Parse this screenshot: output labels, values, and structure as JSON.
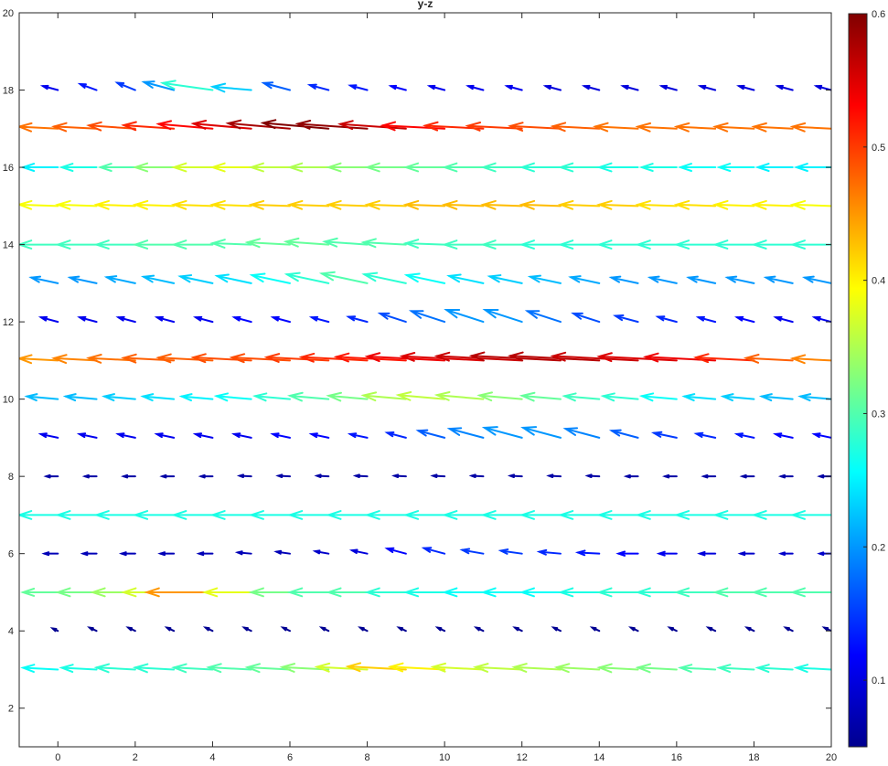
{
  "chart_data": {
    "type": "quiver",
    "title": "y-z",
    "xlabel": "",
    "ylabel": "",
    "xlim": [
      -1,
      20
    ],
    "ylim": [
      1,
      20
    ],
    "x_ticks": [
      "0",
      "2",
      "4",
      "6",
      "8",
      "10",
      "12",
      "14",
      "16",
      "18",
      "20"
    ],
    "y_ticks": [
      "2",
      "4",
      "6",
      "8",
      "10",
      "12",
      "14",
      "16",
      "18",
      "20"
    ],
    "grid": false,
    "colormap": "jet",
    "colorbar": {
      "range": [
        0.05,
        0.6
      ],
      "tick_labels": [
        "0.1",
        "0.2",
        "0.3",
        "0.4",
        "0.5",
        "0.6"
      ]
    },
    "x_positions": [
      0,
      1,
      2,
      3,
      4,
      5,
      6,
      7,
      8,
      9,
      10,
      11,
      12,
      13,
      14,
      15,
      16,
      17,
      18,
      19,
      20
    ],
    "rows": [
      {
        "y": 3,
        "lengths": [
          0.9,
          0.9,
          1.0,
          1.0,
          1.0,
          1.1,
          1.1,
          1.2,
          1.3,
          1.5,
          1.4,
          1.3,
          1.2,
          1.2,
          1.1,
          1.0,
          1.0,
          0.9,
          0.9,
          0.9,
          0.9
        ],
        "angles": [
          3,
          3,
          3,
          3,
          3,
          3,
          3,
          3,
          3,
          3,
          3,
          3,
          3,
          3,
          3,
          3,
          3,
          3,
          3,
          3,
          3
        ],
        "mags": [
          0.26,
          0.27,
          0.28,
          0.28,
          0.29,
          0.3,
          0.31,
          0.33,
          0.37,
          0.42,
          0.4,
          0.37,
          0.36,
          0.35,
          0.34,
          0.33,
          0.32,
          0.3,
          0.29,
          0.28,
          0.27
        ]
      },
      {
        "y": 4,
        "lengths": [
          0.15,
          0.2,
          0.2,
          0.2,
          0.2,
          0.2,
          0.2,
          0.2,
          0.2,
          0.2,
          0.2,
          0.2,
          0.2,
          0.2,
          0.2,
          0.2,
          0.2,
          0.2,
          0.2,
          0.2,
          0.2
        ],
        "angles": [
          25,
          25,
          25,
          25,
          25,
          25,
          25,
          25,
          25,
          25,
          25,
          25,
          25,
          25,
          25,
          25,
          25,
          25,
          25,
          25,
          25
        ],
        "mags": [
          0.06,
          0.06,
          0.06,
          0.06,
          0.06,
          0.06,
          0.06,
          0.06,
          0.06,
          0.06,
          0.06,
          0.06,
          0.06,
          0.06,
          0.06,
          0.06,
          0.06,
          0.06,
          0.06,
          0.06,
          0.06
        ]
      },
      {
        "y": 5,
        "lengths": [
          0.9,
          1.0,
          1.1,
          1.3,
          1.7,
          1.2,
          1.0,
          1.0,
          1.0,
          1.0,
          1.0,
          1.0,
          1.0,
          1.0,
          1.0,
          1.0,
          1.0,
          1.0,
          1.0,
          1.0,
          1.0
        ],
        "angles": [
          0,
          0,
          0,
          0,
          0,
          0,
          0,
          0,
          0,
          0,
          0,
          0,
          0,
          0,
          0,
          0,
          0,
          0,
          0,
          0,
          0
        ],
        "mags": [
          0.31,
          0.32,
          0.34,
          0.37,
          0.45,
          0.38,
          0.32,
          0.3,
          0.3,
          0.28,
          0.27,
          0.26,
          0.26,
          0.26,
          0.27,
          0.28,
          0.28,
          0.29,
          0.3,
          0.3,
          0.3
        ]
      },
      {
        "y": 6,
        "lengths": [
          0.35,
          0.35,
          0.35,
          0.35,
          0.35,
          0.35,
          0.35,
          0.35,
          0.4,
          0.5,
          0.55,
          0.55,
          0.55,
          0.55,
          0.55,
          0.5,
          0.45,
          0.4,
          0.35,
          0.3,
          0.3
        ],
        "angles": [
          0,
          0,
          0,
          0,
          0,
          5,
          8,
          10,
          12,
          15,
          15,
          10,
          8,
          5,
          3,
          0,
          0,
          0,
          0,
          0,
          0
        ],
        "mags": [
          0.08,
          0.08,
          0.08,
          0.08,
          0.08,
          0.08,
          0.08,
          0.09,
          0.1,
          0.12,
          0.14,
          0.15,
          0.15,
          0.14,
          0.13,
          0.12,
          0.11,
          0.1,
          0.09,
          0.09,
          0.09
        ]
      },
      {
        "y": 7,
        "lengths": [
          1.0,
          1.0,
          1.0,
          1.0,
          1.0,
          1.0,
          1.0,
          1.0,
          1.0,
          1.0,
          1.0,
          1.0,
          1.0,
          1.0,
          1.0,
          1.0,
          1.0,
          1.0,
          1.0,
          1.0,
          1.0
        ],
        "angles": [
          0,
          0,
          0,
          0,
          0,
          0,
          0,
          0,
          0,
          0,
          0,
          0,
          0,
          0,
          0,
          0,
          0,
          0,
          0,
          0,
          0
        ],
        "mags": [
          0.27,
          0.27,
          0.27,
          0.27,
          0.27,
          0.27,
          0.27,
          0.27,
          0.27,
          0.27,
          0.27,
          0.27,
          0.27,
          0.27,
          0.27,
          0.27,
          0.27,
          0.27,
          0.27,
          0.27,
          0.27
        ]
      },
      {
        "y": 8,
        "lengths": [
          0.3,
          0.3,
          0.3,
          0.3,
          0.3,
          0.3,
          0.3,
          0.3,
          0.3,
          0.3,
          0.3,
          0.3,
          0.3,
          0.3,
          0.3,
          0.3,
          0.3,
          0.3,
          0.3,
          0.3,
          0.3
        ],
        "angles": [
          0,
          0,
          0,
          0,
          0,
          3,
          3,
          3,
          3,
          3,
          3,
          3,
          3,
          3,
          3,
          0,
          0,
          0,
          0,
          0,
          0
        ],
        "mags": [
          0.07,
          0.07,
          0.07,
          0.07,
          0.07,
          0.07,
          0.07,
          0.07,
          0.07,
          0.07,
          0.07,
          0.07,
          0.07,
          0.07,
          0.07,
          0.07,
          0.07,
          0.07,
          0.07,
          0.07,
          0.07
        ]
      },
      {
        "y": 9,
        "lengths": [
          0.45,
          0.45,
          0.45,
          0.45,
          0.45,
          0.45,
          0.45,
          0.45,
          0.45,
          0.5,
          0.7,
          0.9,
          1.0,
          1.0,
          0.9,
          0.7,
          0.6,
          0.5,
          0.45,
          0.45,
          0.45
        ],
        "angles": [
          12,
          12,
          12,
          12,
          12,
          12,
          12,
          12,
          12,
          15,
          15,
          15,
          15,
          15,
          15,
          15,
          12,
          12,
          12,
          12,
          12
        ],
        "mags": [
          0.11,
          0.11,
          0.11,
          0.11,
          0.11,
          0.11,
          0.12,
          0.12,
          0.13,
          0.14,
          0.17,
          0.19,
          0.2,
          0.2,
          0.19,
          0.17,
          0.15,
          0.14,
          0.13,
          0.12,
          0.12
        ]
      },
      {
        "y": 10,
        "lengths": [
          0.8,
          0.8,
          0.8,
          0.8,
          0.8,
          0.9,
          0.9,
          1.0,
          1.0,
          1.1,
          1.2,
          1.2,
          1.1,
          1.0,
          0.9,
          0.9,
          0.9,
          0.8,
          0.8,
          0.8,
          0.8
        ],
        "angles": [
          5,
          5,
          5,
          5,
          5,
          5,
          5,
          5,
          5,
          5,
          5,
          5,
          5,
          5,
          5,
          5,
          5,
          5,
          5,
          5,
          5
        ],
        "mags": [
          0.22,
          0.22,
          0.23,
          0.24,
          0.25,
          0.26,
          0.28,
          0.3,
          0.32,
          0.35,
          0.36,
          0.35,
          0.33,
          0.31,
          0.29,
          0.28,
          0.26,
          0.24,
          0.23,
          0.22,
          0.22
        ]
      },
      {
        "y": 11,
        "lengths": [
          1.0,
          1.1,
          1.2,
          1.3,
          1.4,
          1.5,
          1.5,
          1.6,
          1.7,
          1.8,
          2.0,
          2.1,
          2.2,
          2.3,
          2.3,
          2.2,
          2.0,
          1.8,
          1.5,
          1.2,
          1.0
        ],
        "angles": [
          3,
          3,
          3,
          3,
          3,
          3,
          3,
          3,
          3,
          3,
          3,
          3,
          3,
          3,
          3,
          3,
          3,
          3,
          3,
          3,
          3
        ],
        "mags": [
          0.45,
          0.46,
          0.47,
          0.48,
          0.48,
          0.49,
          0.49,
          0.5,
          0.51,
          0.52,
          0.54,
          0.55,
          0.56,
          0.57,
          0.57,
          0.56,
          0.55,
          0.54,
          0.51,
          0.48,
          0.46
        ]
      },
      {
        "y": 12,
        "lengths": [
          0.45,
          0.45,
          0.45,
          0.45,
          0.45,
          0.45,
          0.45,
          0.45,
          0.5,
          0.7,
          0.9,
          1.0,
          1.0,
          0.9,
          0.7,
          0.6,
          0.5,
          0.45,
          0.45,
          0.45,
          0.45
        ],
        "angles": [
          15,
          15,
          15,
          15,
          15,
          15,
          15,
          15,
          15,
          18,
          18,
          18,
          18,
          18,
          18,
          15,
          15,
          15,
          15,
          15,
          15
        ],
        "mags": [
          0.11,
          0.11,
          0.11,
          0.11,
          0.11,
          0.12,
          0.12,
          0.13,
          0.14,
          0.16,
          0.18,
          0.2,
          0.2,
          0.18,
          0.16,
          0.15,
          0.14,
          0.13,
          0.12,
          0.11,
          0.11
        ]
      },
      {
        "y": 13,
        "lengths": [
          0.7,
          0.7,
          0.75,
          0.8,
          0.85,
          0.9,
          1.0,
          1.1,
          1.2,
          1.1,
          1.0,
          0.9,
          0.85,
          0.8,
          0.75,
          0.7,
          0.7,
          0.7,
          0.7,
          0.7,
          0.7
        ],
        "angles": [
          12,
          12,
          12,
          12,
          12,
          12,
          12,
          12,
          12,
          12,
          12,
          12,
          12,
          12,
          12,
          12,
          12,
          12,
          12,
          12,
          12
        ],
        "mags": [
          0.2,
          0.2,
          0.21,
          0.22,
          0.23,
          0.24,
          0.26,
          0.28,
          0.3,
          0.28,
          0.26,
          0.24,
          0.23,
          0.22,
          0.21,
          0.2,
          0.2,
          0.2,
          0.2,
          0.2,
          0.2
        ]
      },
      {
        "y": 14,
        "lengths": [
          1.0,
          1.0,
          1.0,
          1.0,
          1.0,
          1.0,
          1.1,
          1.1,
          1.1,
          1.1,
          1.0,
          1.0,
          1.0,
          1.0,
          1.0,
          1.0,
          1.0,
          1.0,
          1.0,
          1.0,
          1.0
        ],
        "angles": [
          0,
          0,
          0,
          0,
          0,
          2,
          3,
          4,
          4,
          3,
          2,
          0,
          0,
          0,
          0,
          0,
          0,
          0,
          0,
          0,
          0
        ],
        "mags": [
          0.29,
          0.29,
          0.29,
          0.3,
          0.3,
          0.3,
          0.31,
          0.31,
          0.3,
          0.3,
          0.29,
          0.29,
          0.29,
          0.28,
          0.28,
          0.28,
          0.28,
          0.28,
          0.28,
          0.28,
          0.28
        ]
      },
      {
        "y": 15,
        "lengths": [
          1.0,
          1.0,
          1.0,
          1.0,
          1.0,
          1.0,
          1.0,
          1.0,
          1.0,
          1.0,
          1.0,
          1.0,
          1.0,
          1.0,
          1.0,
          1.0,
          1.0,
          1.0,
          1.0,
          1.0,
          1.0
        ],
        "angles": [
          2,
          2,
          2,
          2,
          2,
          2,
          2,
          2,
          2,
          2,
          2,
          2,
          2,
          2,
          2,
          2,
          2,
          2,
          2,
          2,
          2
        ],
        "mags": [
          0.39,
          0.39,
          0.4,
          0.4,
          0.41,
          0.41,
          0.42,
          0.42,
          0.42,
          0.42,
          0.43,
          0.43,
          0.43,
          0.43,
          0.42,
          0.42,
          0.41,
          0.41,
          0.4,
          0.4,
          0.39
        ]
      },
      {
        "y": 16,
        "lengths": [
          0.9,
          0.9,
          0.9,
          1.0,
          1.0,
          1.0,
          1.0,
          1.0,
          1.0,
          1.0,
          1.0,
          1.0,
          1.0,
          1.0,
          1.0,
          1.0,
          0.9,
          0.9,
          0.9,
          0.9,
          0.9
        ],
        "angles": [
          0,
          0,
          0,
          0,
          0,
          0,
          0,
          0,
          0,
          0,
          0,
          0,
          0,
          0,
          0,
          0,
          0,
          0,
          0,
          0,
          0
        ],
        "mags": [
          0.25,
          0.27,
          0.3,
          0.33,
          0.37,
          0.38,
          0.36,
          0.35,
          0.33,
          0.32,
          0.31,
          0.3,
          0.29,
          0.28,
          0.28,
          0.27,
          0.27,
          0.26,
          0.26,
          0.25,
          0.25
        ]
      },
      {
        "y": 17,
        "lengths": [
          1.0,
          1.1,
          1.2,
          1.3,
          1.4,
          1.5,
          1.6,
          1.7,
          1.8,
          1.7,
          1.6,
          1.5,
          1.4,
          1.3,
          1.2,
          1.1,
          1.0,
          1.0,
          1.0,
          1.0,
          1.0
        ],
        "angles": [
          3,
          3,
          4,
          4,
          5,
          5,
          5,
          5,
          4,
          4,
          3,
          3,
          3,
          3,
          3,
          3,
          3,
          3,
          3,
          3,
          3
        ],
        "mags": [
          0.47,
          0.48,
          0.49,
          0.51,
          0.53,
          0.55,
          0.58,
          0.6,
          0.59,
          0.56,
          0.53,
          0.51,
          0.5,
          0.49,
          0.48,
          0.47,
          0.47,
          0.47,
          0.47,
          0.47,
          0.47
        ]
      },
      {
        "y": 18,
        "lengths": [
          0.4,
          0.45,
          0.5,
          0.8,
          1.3,
          1.0,
          0.7,
          0.5,
          0.45,
          0.4,
          0.4,
          0.4,
          0.4,
          0.4,
          0.4,
          0.4,
          0.4,
          0.4,
          0.4,
          0.4,
          0.4
        ],
        "angles": [
          15,
          20,
          22,
          15,
          8,
          5,
          15,
          15,
          15,
          15,
          15,
          15,
          15,
          15,
          15,
          15,
          15,
          15,
          15,
          15,
          15
        ],
        "mags": [
          0.11,
          0.13,
          0.15,
          0.2,
          0.28,
          0.23,
          0.17,
          0.14,
          0.13,
          0.12,
          0.11,
          0.11,
          0.11,
          0.1,
          0.1,
          0.1,
          0.1,
          0.1,
          0.1,
          0.1,
          0.1
        ]
      }
    ]
  }
}
